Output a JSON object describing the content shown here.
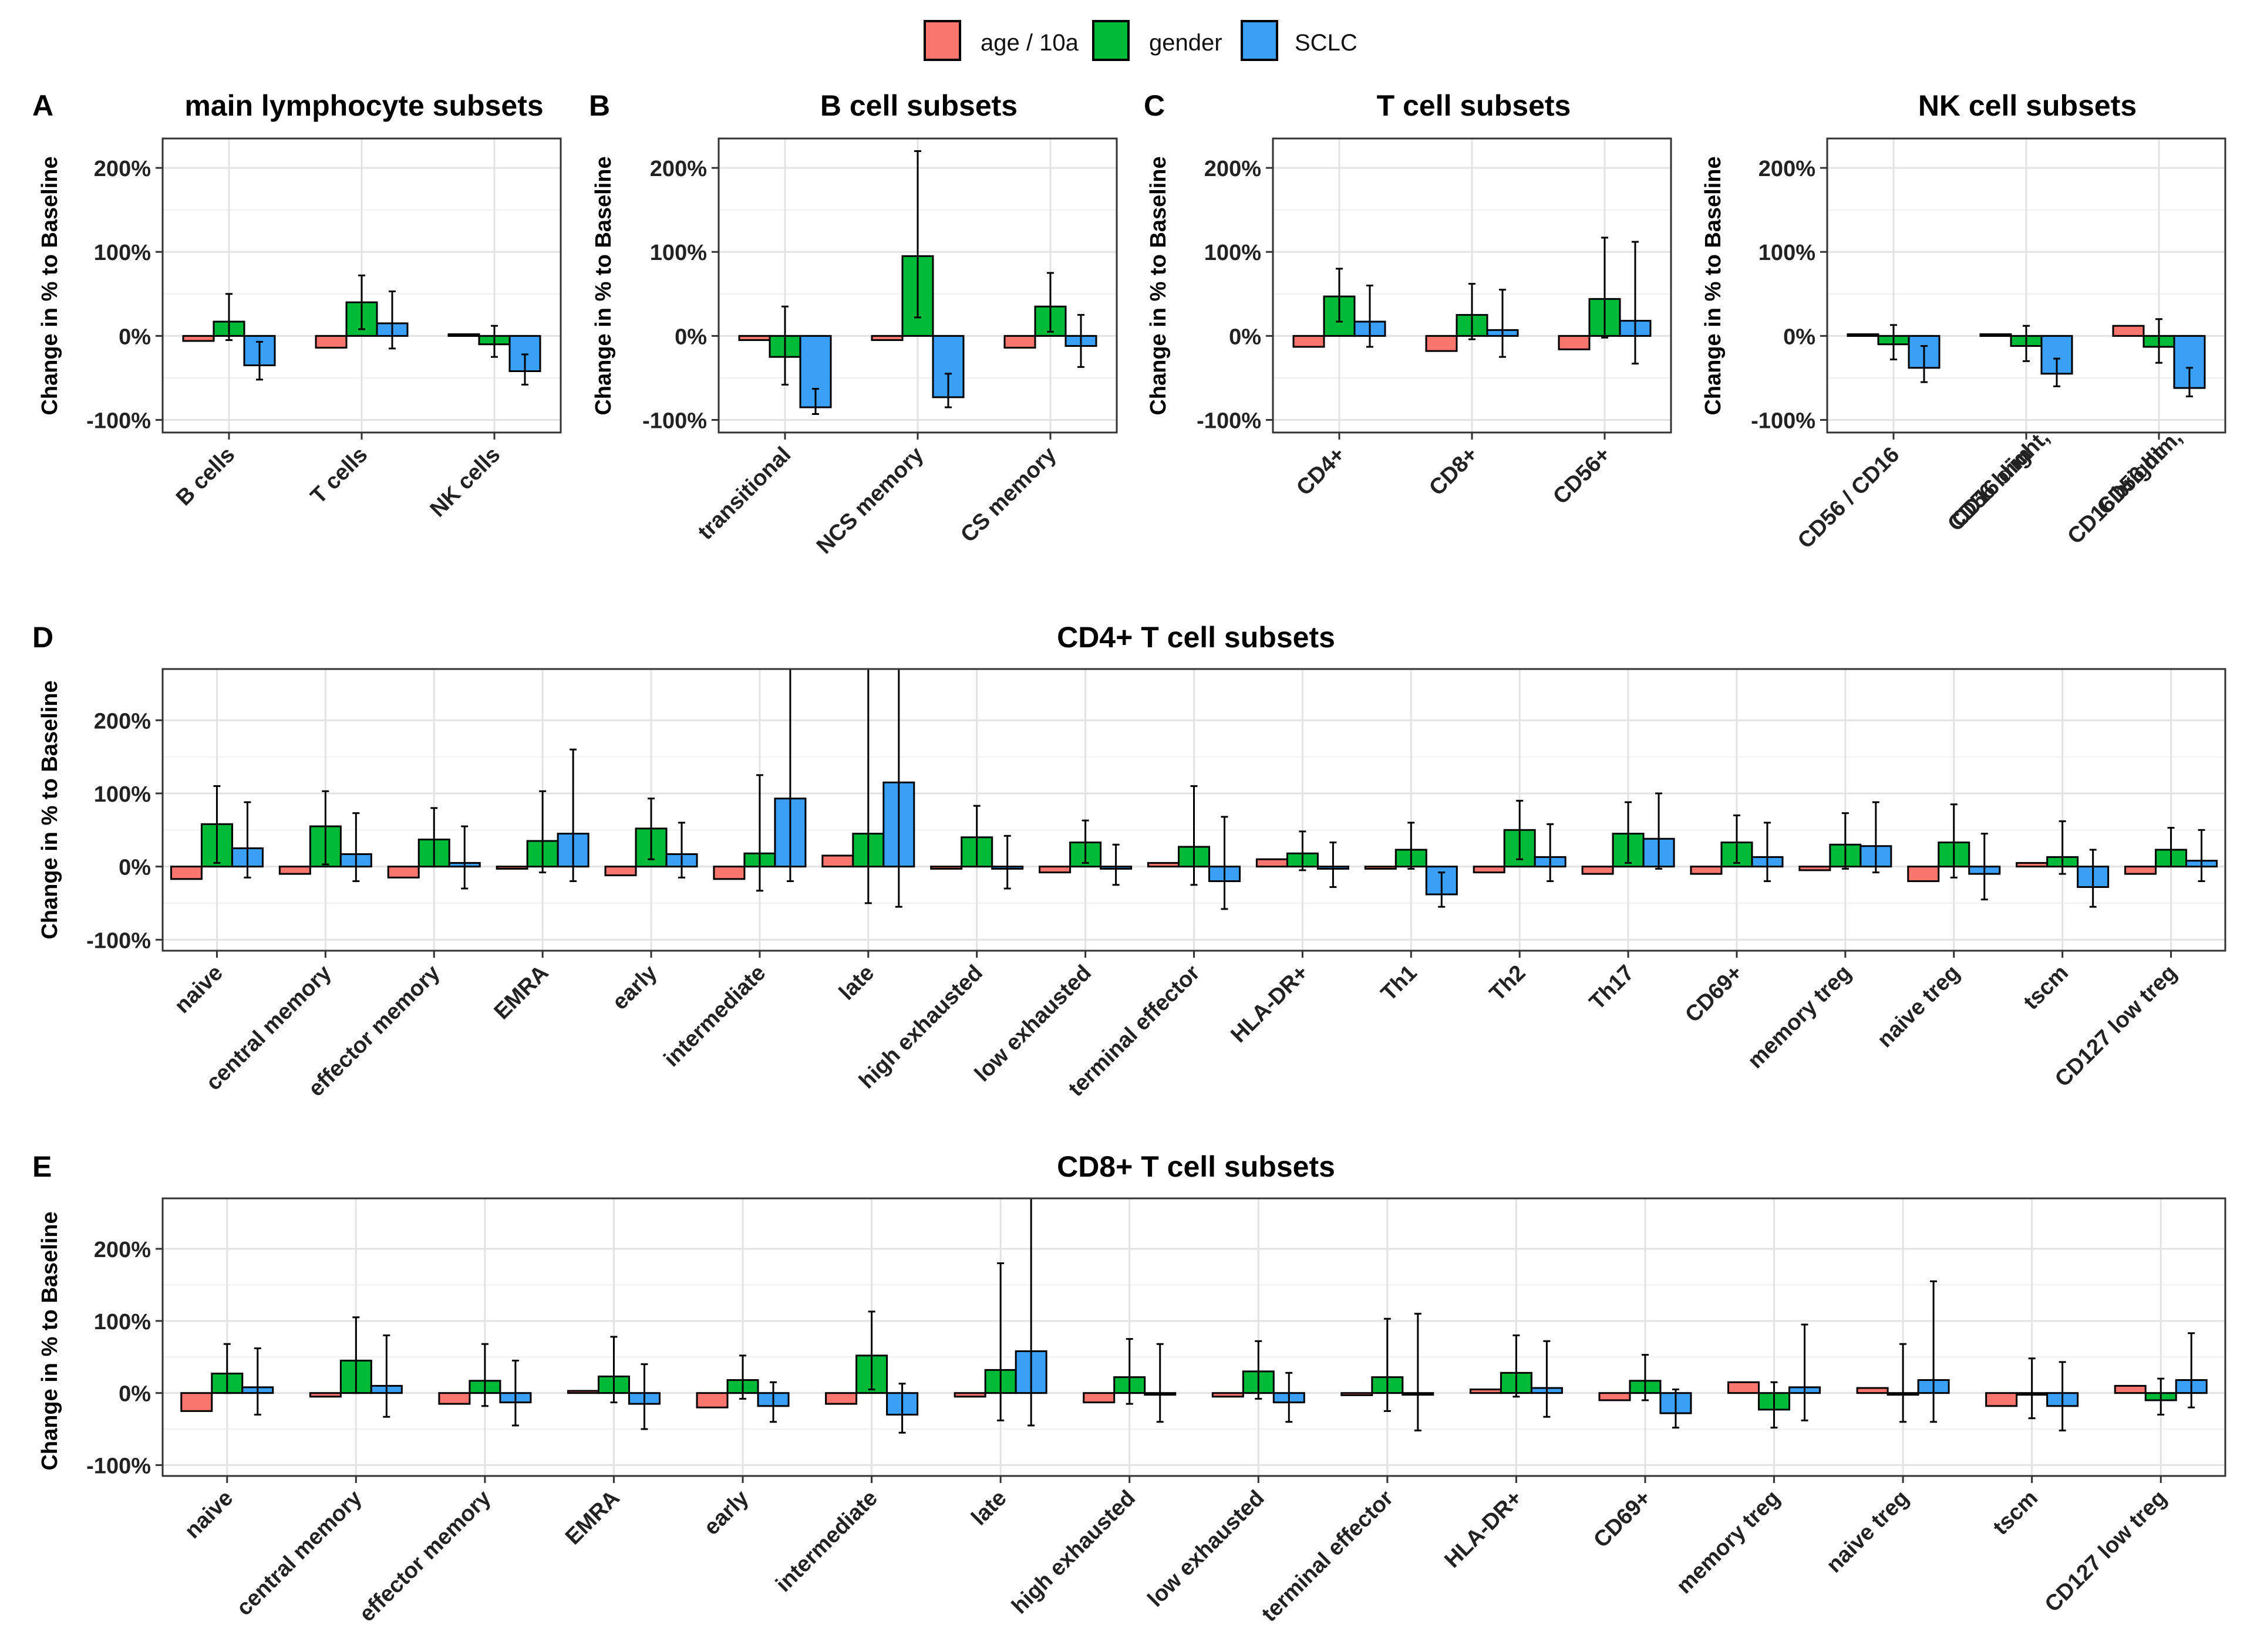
{
  "legend": {
    "entries": [
      {
        "name": "age / 10a",
        "color": "#F8766D"
      },
      {
        "name": "gender",
        "color": "#00BA38"
      },
      {
        "name": "SCLC",
        "color": "#3AA0F5"
      }
    ]
  },
  "y_axis_label": "Change in % to Baseline",
  "chart_data": [
    {
      "type": "bar",
      "panel_letter": "A",
      "title": "main lymphocyte subsets",
      "ylabel": "Change in % to Baseline",
      "ylim": [
        -115,
        235
      ],
      "ticks": [
        -100,
        0,
        100,
        200
      ],
      "tick_labels": [
        "-100%",
        "0%",
        "100%",
        "200%"
      ],
      "categories": [
        "B cells",
        "T cells",
        "NK cells"
      ],
      "series": [
        {
          "name": "age / 10a",
          "values": [
            -6,
            -14,
            2
          ],
          "err_low": [
            null,
            null,
            null
          ],
          "err_high": [
            null,
            null,
            null
          ]
        },
        {
          "name": "gender",
          "values": [
            17,
            40,
            -10
          ],
          "err_low": [
            -5,
            8,
            -25
          ],
          "err_high": [
            50,
            72,
            12
          ]
        },
        {
          "name": "SCLC",
          "values": [
            -35,
            15,
            -42
          ],
          "err_low": [
            -52,
            -15,
            -58
          ],
          "err_high": [
            -7,
            53,
            -22
          ]
        }
      ]
    },
    {
      "type": "bar",
      "panel_letter": "B",
      "title": "B cell subsets",
      "ylabel": "Change in % to Baseline",
      "ylim": [
        -115,
        235
      ],
      "ticks": [
        -100,
        0,
        100,
        200
      ],
      "tick_labels": [
        "-100%",
        "0%",
        "100%",
        "200%"
      ],
      "categories": [
        "transitional",
        "NCS memory",
        "CS memory"
      ],
      "series": [
        {
          "name": "age / 10a",
          "values": [
            -5,
            -5,
            -14
          ],
          "err_low": [
            null,
            null,
            null
          ],
          "err_high": [
            null,
            null,
            null
          ]
        },
        {
          "name": "gender",
          "values": [
            -25,
            95,
            35
          ],
          "err_low": [
            -58,
            22,
            5
          ],
          "err_high": [
            35,
            220,
            75
          ]
        },
        {
          "name": "SCLC",
          "values": [
            -85,
            -73,
            -12
          ],
          "err_low": [
            -93,
            -85,
            -37
          ],
          "err_high": [
            -63,
            -45,
            25
          ]
        }
      ]
    },
    {
      "type": "bar",
      "panel_letter": "C",
      "title": "T cell subsets",
      "ylabel": "Change in % to Baseline",
      "ylim": [
        -115,
        235
      ],
      "ticks": [
        -100,
        0,
        100,
        200
      ],
      "tick_labels": [
        "-100%",
        "0%",
        "100%",
        "200%"
      ],
      "categories": [
        "CD4+",
        "CD8+",
        "CD56+"
      ],
      "series": [
        {
          "name": "age / 10a",
          "values": [
            -13,
            -18,
            -16
          ],
          "err_low": [
            null,
            null,
            null
          ],
          "err_high": [
            null,
            null,
            null
          ]
        },
        {
          "name": "gender",
          "values": [
            47,
            25,
            44
          ],
          "err_low": [
            17,
            -4,
            -2
          ],
          "err_high": [
            80,
            62,
            117
          ]
        },
        {
          "name": "SCLC",
          "values": [
            17,
            7,
            18
          ],
          "err_low": [
            -13,
            -25,
            -33
          ],
          "err_high": [
            60,
            55,
            112
          ]
        }
      ]
    },
    {
      "type": "bar",
      "panel_letter": "",
      "title": "NK cell subsets",
      "ylabel": "Change in % to Baseline",
      "ylim": [
        -115,
        235
      ],
      "ticks": [
        -100,
        0,
        100,
        200
      ],
      "tick_labels": [
        "-100%",
        "0%",
        "100%",
        "200%"
      ],
      "categories": [
        "CD56 / CD16",
        "CD56 bright, CD16 dim",
        "CD56 dim, CD16 bright"
      ],
      "series": [
        {
          "name": "age / 10a",
          "values": [
            2,
            2,
            12
          ],
          "err_low": [
            null,
            null,
            null
          ],
          "err_high": [
            null,
            null,
            null
          ]
        },
        {
          "name": "gender",
          "values": [
            -10,
            -12,
            -13
          ],
          "err_low": [
            -28,
            -30,
            -32
          ],
          "err_high": [
            13,
            12,
            20
          ]
        },
        {
          "name": "SCLC",
          "values": [
            -38,
            -45,
            -62
          ],
          "err_low": [
            -55,
            -60,
            -72
          ],
          "err_high": [
            -12,
            -27,
            -38
          ]
        }
      ]
    },
    {
      "type": "bar",
      "panel_letter": "D",
      "title": "CD4+ T cell subsets",
      "ylabel": "Change in % to Baseline",
      "ylim": [
        -115,
        270
      ],
      "ticks": [
        -100,
        0,
        100,
        200
      ],
      "tick_labels": [
        "-100%",
        "0%",
        "100%",
        "200%"
      ],
      "categories": [
        "naive",
        "central memory",
        "effector memory",
        "EMRA",
        "early",
        "intermediate",
        "late",
        "high exhausted",
        "low exhausted",
        "terminal effector",
        "HLA-DR+",
        "Th1",
        "Th2",
        "Th17",
        "CD69+",
        "memory treg",
        "naive treg",
        "tscm",
        "CD127 low treg"
      ],
      "series": [
        {
          "name": "age / 10a",
          "values": [
            -17,
            -10,
            -15,
            -3,
            -12,
            -17,
            15,
            -3,
            -8,
            5,
            10,
            -3,
            -8,
            -10,
            -10,
            -5,
            -20,
            5,
            -10
          ],
          "err_low": [
            null,
            null,
            null,
            null,
            null,
            null,
            null,
            null,
            null,
            null,
            null,
            null,
            null,
            null,
            null,
            null,
            null,
            null,
            null
          ],
          "err_high": [
            null,
            null,
            null,
            null,
            null,
            null,
            null,
            null,
            null,
            null,
            null,
            null,
            null,
            null,
            null,
            null,
            null,
            null,
            null
          ]
        },
        {
          "name": "gender",
          "values": [
            58,
            55,
            37,
            35,
            52,
            18,
            45,
            40,
            33,
            27,
            18,
            23,
            50,
            45,
            33,
            30,
            33,
            13,
            23
          ],
          "err_low": [
            5,
            3,
            0,
            -8,
            10,
            -33,
            -50,
            0,
            5,
            -25,
            -5,
            -3,
            10,
            5,
            5,
            -3,
            -15,
            -10,
            0
          ],
          "err_high": [
            110,
            103,
            80,
            103,
            93,
            125,
            270,
            83,
            63,
            110,
            48,
            60,
            90,
            88,
            70,
            73,
            85,
            62,
            53
          ]
        },
        {
          "name": "SCLC",
          "values": [
            25,
            17,
            5,
            45,
            17,
            93,
            115,
            -3,
            -3,
            -20,
            -3,
            -38,
            13,
            38,
            13,
            28,
            -10,
            -28,
            8
          ],
          "err_low": [
            -15,
            -20,
            -30,
            -20,
            -15,
            -20,
            -55,
            -30,
            -25,
            -58,
            -28,
            -55,
            -20,
            -3,
            -20,
            -8,
            -45,
            -55,
            -20
          ],
          "err_high": [
            88,
            73,
            55,
            160,
            60,
            270,
            270,
            42,
            30,
            68,
            33,
            -8,
            58,
            100,
            60,
            88,
            45,
            23,
            50
          ]
        }
      ]
    },
    {
      "type": "bar",
      "panel_letter": "E",
      "title": "CD8+ T cell subsets",
      "ylabel": "Change in % to Baseline",
      "ylim": [
        -115,
        270
      ],
      "ticks": [
        -100,
        0,
        100,
        200
      ],
      "tick_labels": [
        "-100%",
        "0%",
        "100%",
        "200%"
      ],
      "categories": [
        "naive",
        "central memory",
        "effector memory",
        "EMRA",
        "early",
        "intermediate",
        "late",
        "high exhausted",
        "low exhausted",
        "terminal effector",
        "HLA-DR+",
        "CD69+",
        "memory treg",
        "naive treg",
        "tscm",
        "CD127 low treg"
      ],
      "series": [
        {
          "name": "age / 10a",
          "values": [
            -25,
            -5,
            -15,
            3,
            -20,
            -15,
            -5,
            -13,
            -5,
            -3,
            5,
            -10,
            15,
            7,
            -18,
            10
          ],
          "err_low": [
            null,
            null,
            null,
            null,
            null,
            null,
            null,
            null,
            null,
            null,
            null,
            null,
            null,
            null,
            null,
            null
          ],
          "err_high": [
            null,
            null,
            null,
            null,
            null,
            null,
            null,
            null,
            null,
            null,
            null,
            null,
            null,
            null,
            null,
            null
          ]
        },
        {
          "name": "gender",
          "values": [
            27,
            45,
            17,
            23,
            18,
            52,
            32,
            22,
            30,
            22,
            28,
            17,
            -23,
            0,
            0,
            -10
          ],
          "err_low": [
            0,
            0,
            -18,
            -13,
            -8,
            5,
            -38,
            -15,
            -8,
            -25,
            -5,
            -10,
            -48,
            -40,
            -35,
            -30
          ],
          "err_high": [
            68,
            105,
            68,
            78,
            52,
            113,
            180,
            75,
            72,
            103,
            80,
            53,
            15,
            68,
            48,
            20
          ]
        },
        {
          "name": "SCLC",
          "values": [
            8,
            10,
            -13,
            -15,
            -18,
            -30,
            58,
            0,
            -13,
            0,
            7,
            -28,
            8,
            18,
            -18,
            18
          ],
          "err_low": [
            -30,
            -33,
            -45,
            -50,
            -40,
            -55,
            -45,
            -40,
            -40,
            -52,
            -33,
            -48,
            -38,
            -40,
            -52,
            -20
          ],
          "err_high": [
            62,
            80,
            45,
            40,
            15,
            13,
            270,
            68,
            28,
            110,
            72,
            5,
            95,
            155,
            43,
            83
          ]
        }
      ]
    }
  ]
}
